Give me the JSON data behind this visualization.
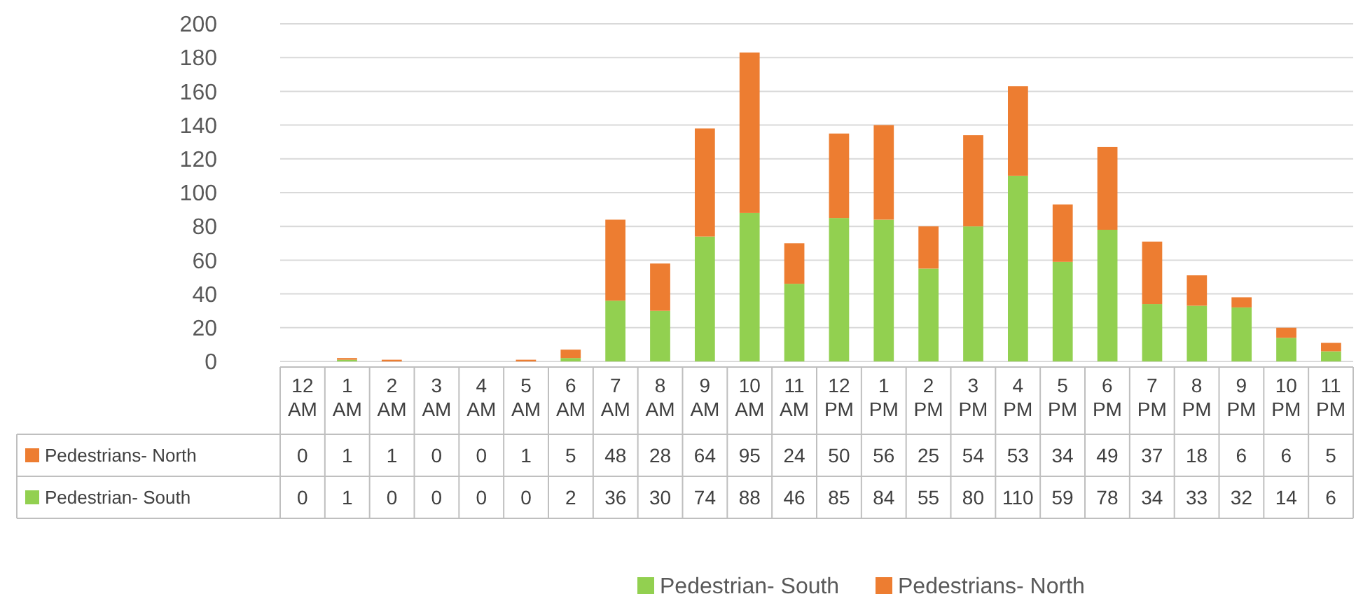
{
  "chart_data": {
    "type": "bar",
    "stacked": true,
    "categories": [
      "12 AM",
      "1 AM",
      "2 AM",
      "3 AM",
      "4 AM",
      "5 AM",
      "6 AM",
      "7 AM",
      "8 AM",
      "9 AM",
      "10 AM",
      "11 AM",
      "12 PM",
      "1 PM",
      "2 PM",
      "3 PM",
      "4 PM",
      "5 PM",
      "6 PM",
      "7 PM",
      "8 PM",
      "9 PM",
      "10 PM",
      "11 PM"
    ],
    "series": [
      {
        "name": "Pedestrian- South",
        "color": "#92d050",
        "values": [
          0,
          1,
          0,
          0,
          0,
          0,
          2,
          36,
          30,
          74,
          88,
          46,
          85,
          84,
          55,
          80,
          110,
          59,
          78,
          34,
          33,
          32,
          14,
          6
        ]
      },
      {
        "name": "Pedestrians- North",
        "color": "#ed7d31",
        "values": [
          0,
          1,
          1,
          0,
          0,
          1,
          5,
          48,
          28,
          64,
          95,
          24,
          50,
          56,
          25,
          54,
          53,
          34,
          49,
          37,
          18,
          6,
          6,
          5
        ]
      }
    ],
    "ylim": [
      0,
      200
    ],
    "yticks": [
      0,
      20,
      40,
      60,
      80,
      100,
      120,
      140,
      160,
      180,
      200
    ],
    "grid": "y",
    "legend": "bottom",
    "data_labels": true
  }
}
